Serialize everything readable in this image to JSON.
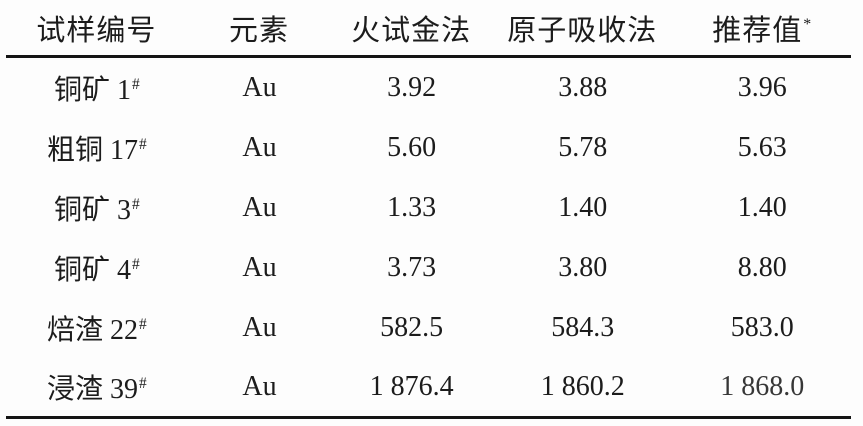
{
  "table": {
    "columns": [
      {
        "label": "试样编号",
        "sup": ""
      },
      {
        "label": "元素",
        "sup": ""
      },
      {
        "label": "火试金法",
        "sup": ""
      },
      {
        "label": "原子吸收法",
        "sup": ""
      },
      {
        "label": "推荐值",
        "sup": "*"
      }
    ],
    "rows": [
      {
        "sample": "铜矿 1",
        "sample_sup": "#",
        "element": "Au",
        "fire_assay": "3.92",
        "atomic_absorption": "3.88",
        "recommended": "3.96"
      },
      {
        "sample": "粗铜 17",
        "sample_sup": "#",
        "element": "Au",
        "fire_assay": "5.60",
        "atomic_absorption": "5.78",
        "recommended": "5.63"
      },
      {
        "sample": "铜矿 3",
        "sample_sup": "#",
        "element": "Au",
        "fire_assay": "1.33",
        "atomic_absorption": "1.40",
        "recommended": "1.40"
      },
      {
        "sample": "铜矿 4",
        "sample_sup": "#",
        "element": "Au",
        "fire_assay": "3.73",
        "atomic_absorption": "3.80",
        "recommended": "8.80"
      },
      {
        "sample": "焙渣 22",
        "sample_sup": "#",
        "element": "Au",
        "fire_assay": "582.5",
        "atomic_absorption": "584.3",
        "recommended": "583.0"
      },
      {
        "sample": "浸渣 39",
        "sample_sup": "#",
        "element": "Au",
        "fire_assay": "1 876.4",
        "atomic_absorption": "1 860.2",
        "recommended": "1 868.0"
      }
    ]
  }
}
